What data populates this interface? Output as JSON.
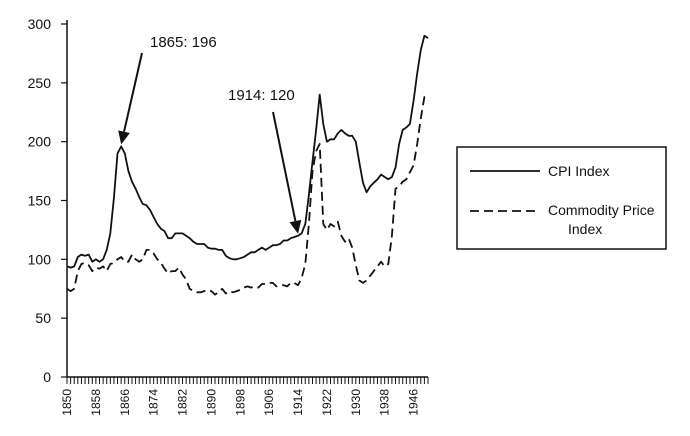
{
  "chart_data": {
    "type": "line",
    "x_range": [
      1850,
      1950
    ],
    "ylim": [
      0,
      300
    ],
    "y_ticks": [
      0,
      50,
      100,
      150,
      200,
      250,
      300
    ],
    "x_tick_labels": [
      "1850",
      "1858",
      "1866",
      "1874",
      "1882",
      "1890",
      "1898",
      "1906",
      "1914",
      "1922",
      "1930",
      "1938",
      "1946"
    ],
    "legend_position": "right",
    "grid": false,
    "annotations": [
      {
        "text": "1865:  196",
        "x": 1865,
        "y": 196
      },
      {
        "text": "1914:  120",
        "x": 1914,
        "y": 120
      }
    ],
    "series": [
      {
        "name": "CPI Index",
        "style": "solid",
        "points": [
          [
            1850,
            94
          ],
          [
            1851,
            93
          ],
          [
            1852,
            94
          ],
          [
            1853,
            102
          ],
          [
            1854,
            104
          ],
          [
            1855,
            103
          ],
          [
            1856,
            104
          ],
          [
            1857,
            98
          ],
          [
            1858,
            100
          ],
          [
            1859,
            98
          ],
          [
            1860,
            100
          ],
          [
            1861,
            108
          ],
          [
            1862,
            122
          ],
          [
            1863,
            152
          ],
          [
            1864,
            190
          ],
          [
            1865,
            196
          ],
          [
            1866,
            190
          ],
          [
            1867,
            175
          ],
          [
            1868,
            166
          ],
          [
            1869,
            160
          ],
          [
            1870,
            153
          ],
          [
            1871,
            147
          ],
          [
            1872,
            146
          ],
          [
            1873,
            142
          ],
          [
            1874,
            136
          ],
          [
            1875,
            130
          ],
          [
            1876,
            126
          ],
          [
            1877,
            124
          ],
          [
            1878,
            118
          ],
          [
            1879,
            118
          ],
          [
            1880,
            122
          ],
          [
            1881,
            122
          ],
          [
            1882,
            122
          ],
          [
            1883,
            120
          ],
          [
            1884,
            118
          ],
          [
            1885,
            115
          ],
          [
            1886,
            113
          ],
          [
            1887,
            113
          ],
          [
            1888,
            113
          ],
          [
            1889,
            110
          ],
          [
            1890,
            109
          ],
          [
            1891,
            109
          ],
          [
            1892,
            108
          ],
          [
            1893,
            108
          ],
          [
            1894,
            103
          ],
          [
            1895,
            101
          ],
          [
            1896,
            100
          ],
          [
            1897,
            100
          ],
          [
            1898,
            101
          ],
          [
            1899,
            102
          ],
          [
            1900,
            104
          ],
          [
            1901,
            106
          ],
          [
            1902,
            106
          ],
          [
            1903,
            108
          ],
          [
            1904,
            110
          ],
          [
            1905,
            108
          ],
          [
            1906,
            110
          ],
          [
            1907,
            112
          ],
          [
            1908,
            112
          ],
          [
            1909,
            113
          ],
          [
            1910,
            116
          ],
          [
            1911,
            116
          ],
          [
            1912,
            118
          ],
          [
            1913,
            119
          ],
          [
            1914,
            120
          ],
          [
            1915,
            122
          ],
          [
            1916,
            130
          ],
          [
            1917,
            155
          ],
          [
            1918,
            183
          ],
          [
            1919,
            210
          ],
          [
            1920,
            240
          ],
          [
            1921,
            215
          ],
          [
            1922,
            200
          ],
          [
            1923,
            202
          ],
          [
            1924,
            202
          ],
          [
            1925,
            207
          ],
          [
            1926,
            210
          ],
          [
            1927,
            207
          ],
          [
            1928,
            205
          ],
          [
            1929,
            205
          ],
          [
            1930,
            200
          ],
          [
            1931,
            182
          ],
          [
            1932,
            165
          ],
          [
            1933,
            157
          ],
          [
            1934,
            162
          ],
          [
            1935,
            165
          ],
          [
            1936,
            168
          ],
          [
            1937,
            172
          ],
          [
            1938,
            170
          ],
          [
            1939,
            168
          ],
          [
            1940,
            170
          ],
          [
            1941,
            178
          ],
          [
            1942,
            198
          ],
          [
            1943,
            210
          ],
          [
            1944,
            212
          ],
          [
            1945,
            215
          ],
          [
            1946,
            235
          ],
          [
            1947,
            258
          ],
          [
            1948,
            278
          ],
          [
            1949,
            290
          ],
          [
            1950,
            288
          ]
        ]
      },
      {
        "name": "Commodity Price Index",
        "style": "dashed",
        "points": [
          [
            1850,
            75
          ],
          [
            1851,
            73
          ],
          [
            1852,
            75
          ],
          [
            1853,
            90
          ],
          [
            1854,
            96
          ],
          [
            1855,
            97
          ],
          [
            1856,
            95
          ],
          [
            1857,
            90
          ],
          [
            1858,
            93
          ],
          [
            1859,
            92
          ],
          [
            1860,
            94
          ],
          [
            1861,
            90
          ],
          [
            1862,
            96
          ],
          [
            1863,
            97
          ],
          [
            1864,
            100
          ],
          [
            1865,
            102
          ],
          [
            1866,
            98
          ],
          [
            1867,
            98
          ],
          [
            1868,
            104
          ],
          [
            1869,
            100
          ],
          [
            1870,
            98
          ],
          [
            1871,
            100
          ],
          [
            1872,
            108
          ],
          [
            1873,
            108
          ],
          [
            1874,
            105
          ],
          [
            1875,
            100
          ],
          [
            1876,
            97
          ],
          [
            1877,
            92
          ],
          [
            1878,
            88
          ],
          [
            1879,
            90
          ],
          [
            1880,
            90
          ],
          [
            1881,
            93
          ],
          [
            1882,
            87
          ],
          [
            1883,
            83
          ],
          [
            1884,
            75
          ],
          [
            1885,
            73
          ],
          [
            1886,
            72
          ],
          [
            1887,
            72
          ],
          [
            1888,
            73
          ],
          [
            1889,
            74
          ],
          [
            1890,
            73
          ],
          [
            1891,
            70
          ],
          [
            1892,
            72
          ],
          [
            1893,
            75
          ],
          [
            1894,
            71
          ],
          [
            1895,
            73
          ],
          [
            1896,
            72
          ],
          [
            1897,
            73
          ],
          [
            1898,
            74
          ],
          [
            1899,
            76
          ],
          [
            1900,
            77
          ],
          [
            1901,
            76
          ],
          [
            1902,
            77
          ],
          [
            1903,
            76
          ],
          [
            1904,
            79
          ],
          [
            1905,
            79
          ],
          [
            1906,
            80
          ],
          [
            1907,
            80
          ],
          [
            1908,
            77
          ],
          [
            1909,
            78
          ],
          [
            1910,
            78
          ],
          [
            1911,
            77
          ],
          [
            1912,
            80
          ],
          [
            1913,
            80
          ],
          [
            1914,
            78
          ],
          [
            1915,
            84
          ],
          [
            1916,
            96
          ],
          [
            1917,
            130
          ],
          [
            1918,
            175
          ],
          [
            1919,
            192
          ],
          [
            1920,
            198
          ],
          [
            1921,
            130
          ],
          [
            1922,
            125
          ],
          [
            1923,
            130
          ],
          [
            1924,
            128
          ],
          [
            1925,
            132
          ],
          [
            1926,
            120
          ],
          [
            1927,
            115
          ],
          [
            1928,
            118
          ],
          [
            1929,
            110
          ],
          [
            1930,
            95
          ],
          [
            1931,
            82
          ],
          [
            1932,
            80
          ],
          [
            1933,
            82
          ],
          [
            1934,
            86
          ],
          [
            1935,
            90
          ],
          [
            1936,
            94
          ],
          [
            1937,
            98
          ],
          [
            1938,
            94
          ],
          [
            1939,
            96
          ],
          [
            1940,
            120
          ],
          [
            1941,
            160
          ],
          [
            1942,
            162
          ],
          [
            1943,
            166
          ],
          [
            1944,
            168
          ],
          [
            1945,
            174
          ],
          [
            1946,
            180
          ],
          [
            1947,
            198
          ],
          [
            1948,
            220
          ],
          [
            1949,
            238
          ],
          [
            1950,
            240
          ]
        ]
      }
    ]
  }
}
